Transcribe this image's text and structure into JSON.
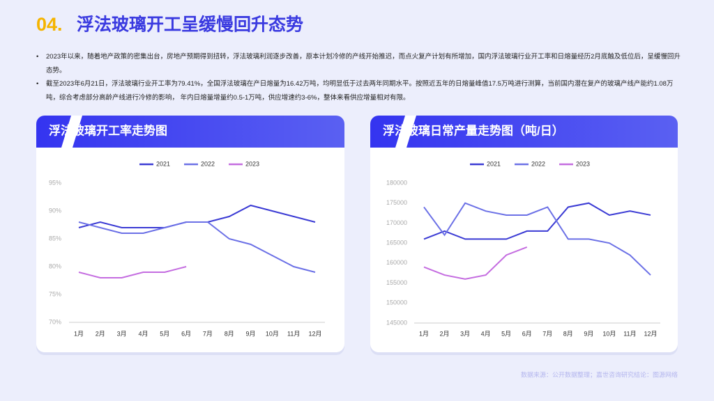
{
  "title_num": "04.",
  "title": "浮法玻璃开工呈缓慢回升态势",
  "bullets": [
    "2023年以来，随着地产政策的密集出台，房地产预期得到扭转，浮法玻璃利润逐步改善，原本计划冷修的产线开始推迟，而点火复产计划有所增加，国内浮法玻璃行业开工率和日熔量经历2月底触及低位后，呈缓慢回升态势。",
    "截至2023年6月21日，浮法玻璃行业开工率为79.41%，全国浮法玻璃在产日熔量为16.42万吨，均明显低于过去两年同期水平。按照近五年的日熔量峰值17.5万吨进行测算，当前国内潜在复产的玻璃产线产能约1.08万吨，综合考虑部分高龄产线进行冷修的影响， 年内日熔量增量约0.5-1万吨，供应增速约3-6%，整体来看供应增量相对有限。"
  ],
  "source": "数据来源：公开数据整理；嘉世咨询研究结论：图源网络",
  "chart_data": [
    {
      "type": "line",
      "title": "浮法玻璃开工率走势图",
      "categories": [
        "1月",
        "2月",
        "3月",
        "4月",
        "5月",
        "6月",
        "7月",
        "8月",
        "9月",
        "10月",
        "11月",
        "12月"
      ],
      "series": [
        {
          "name": "2021",
          "color": "#3a3ad4",
          "values": [
            87,
            88,
            87,
            87,
            87,
            88,
            88,
            89,
            91,
            90,
            89,
            88
          ]
        },
        {
          "name": "2022",
          "color": "#6b70e6",
          "values": [
            88,
            87,
            86,
            86,
            87,
            88,
            88,
            85,
            84,
            82,
            80,
            79
          ]
        },
        {
          "name": "2023",
          "color": "#c46ce0",
          "values": [
            79,
            78,
            78,
            79,
            79,
            80,
            null,
            null,
            null,
            null,
            null,
            null
          ]
        }
      ],
      "ylim": [
        70,
        95
      ],
      "yticks": [
        {
          "value": 70,
          "label": "70%"
        },
        {
          "value": 75,
          "label": "75%"
        },
        {
          "value": 80,
          "label": "80%"
        },
        {
          "value": 85,
          "label": "85%"
        },
        {
          "value": 90,
          "label": "90%"
        },
        {
          "value": 95,
          "label": "95%"
        }
      ]
    },
    {
      "type": "line",
      "title": "浮法玻璃日常产量走势图（吨/日）",
      "categories": [
        "1月",
        "2月",
        "3月",
        "4月",
        "5月",
        "6月",
        "7月",
        "8月",
        "9月",
        "10月",
        "11月",
        "12月"
      ],
      "series": [
        {
          "name": "2021",
          "color": "#3a3ad4",
          "values": [
            166000,
            168000,
            166000,
            166000,
            166000,
            168000,
            168000,
            174000,
            175000,
            172000,
            173000,
            172000
          ]
        },
        {
          "name": "2022",
          "color": "#6b70e6",
          "values": [
            174000,
            167000,
            175000,
            173000,
            172000,
            172000,
            174000,
            166000,
            166000,
            165000,
            162000,
            157000
          ]
        },
        {
          "name": "2023",
          "color": "#c46ce0",
          "values": [
            159000,
            157000,
            156000,
            157000,
            162000,
            164000,
            null,
            null,
            null,
            null,
            null,
            null
          ]
        }
      ],
      "ylim": [
        145000,
        180000
      ],
      "yticks": [
        145000,
        150000,
        155000,
        160000,
        165000,
        170000,
        175000,
        180000
      ]
    }
  ]
}
